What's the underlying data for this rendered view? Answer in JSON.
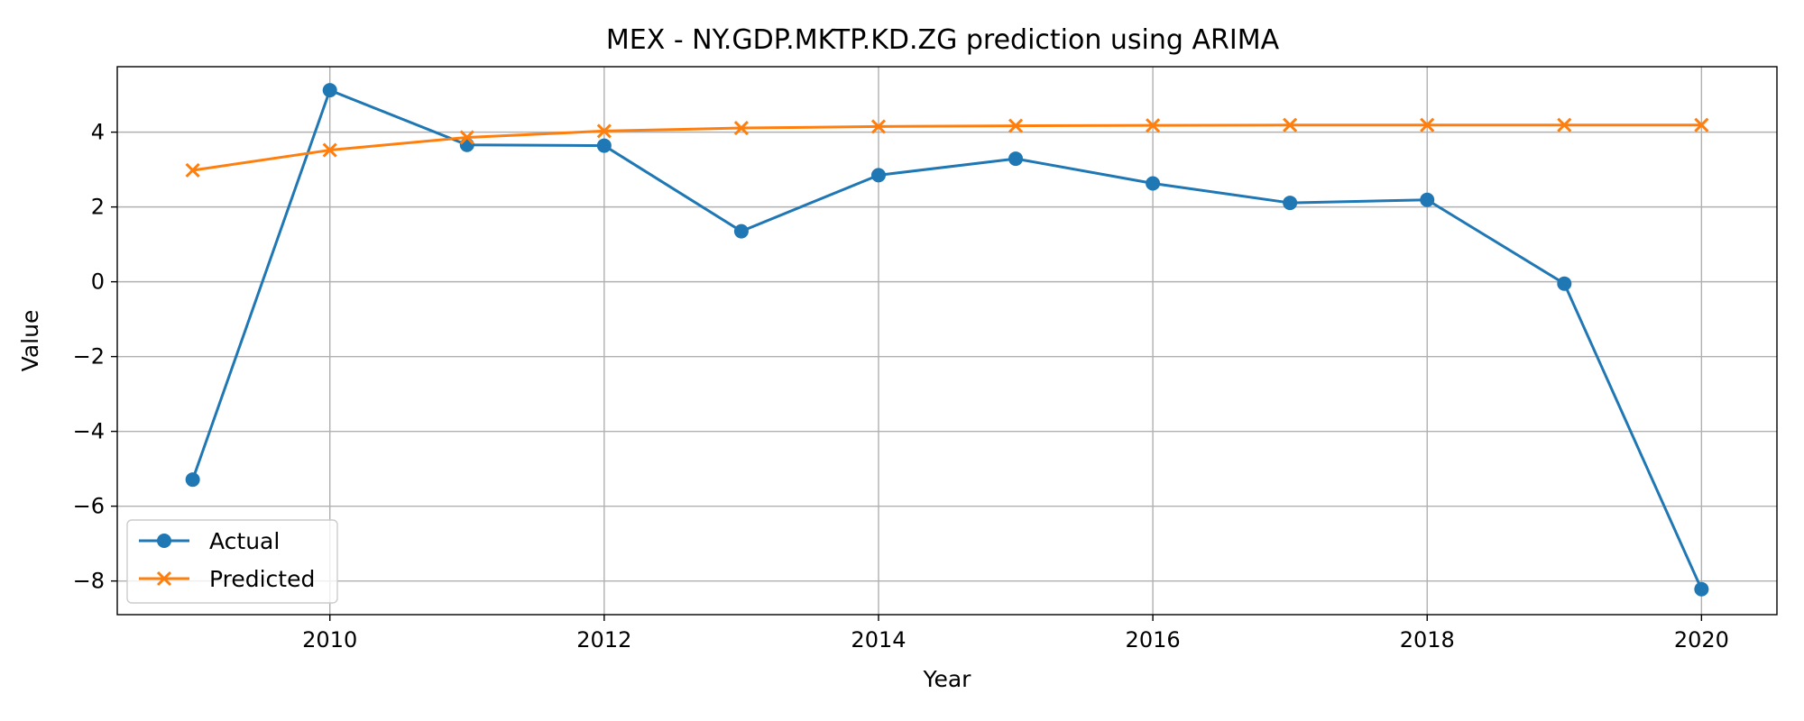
{
  "chart_data": {
    "type": "line",
    "title": "MEX - NY.GDP.MKTP.KD.ZG prediction using ARIMA",
    "xlabel": "Year",
    "ylabel": "Value",
    "xlim": [
      2008.45,
      2020.55
    ],
    "ylim": [
      -8.9,
      5.75
    ],
    "x_ticks": [
      2010,
      2012,
      2014,
      2016,
      2018,
      2020
    ],
    "x_tick_labels": [
      "2010",
      "2012",
      "2014",
      "2016",
      "2018",
      "2020"
    ],
    "y_ticks": [
      -8,
      -6,
      -4,
      -2,
      0,
      2,
      4
    ],
    "y_tick_labels": [
      "−8",
      "−6",
      "−4",
      "−2",
      "0",
      "2",
      "4"
    ],
    "grid": true,
    "legend_position": "lower-left",
    "x": [
      2009,
      2010,
      2011,
      2012,
      2013,
      2014,
      2015,
      2016,
      2017,
      2018,
      2019,
      2020
    ],
    "series": [
      {
        "name": "Actual",
        "color": "#1f77b4",
        "marker": "circle",
        "values": [
          -5.29,
          5.12,
          3.66,
          3.64,
          1.35,
          2.85,
          3.29,
          2.63,
          2.11,
          2.19,
          -0.05,
          -8.22
        ]
      },
      {
        "name": "Predicted",
        "color": "#ff7f0e",
        "marker": "x",
        "values": [
          2.98,
          3.52,
          3.86,
          4.03,
          4.11,
          4.15,
          4.17,
          4.18,
          4.19,
          4.19,
          4.19,
          4.19
        ]
      }
    ]
  }
}
